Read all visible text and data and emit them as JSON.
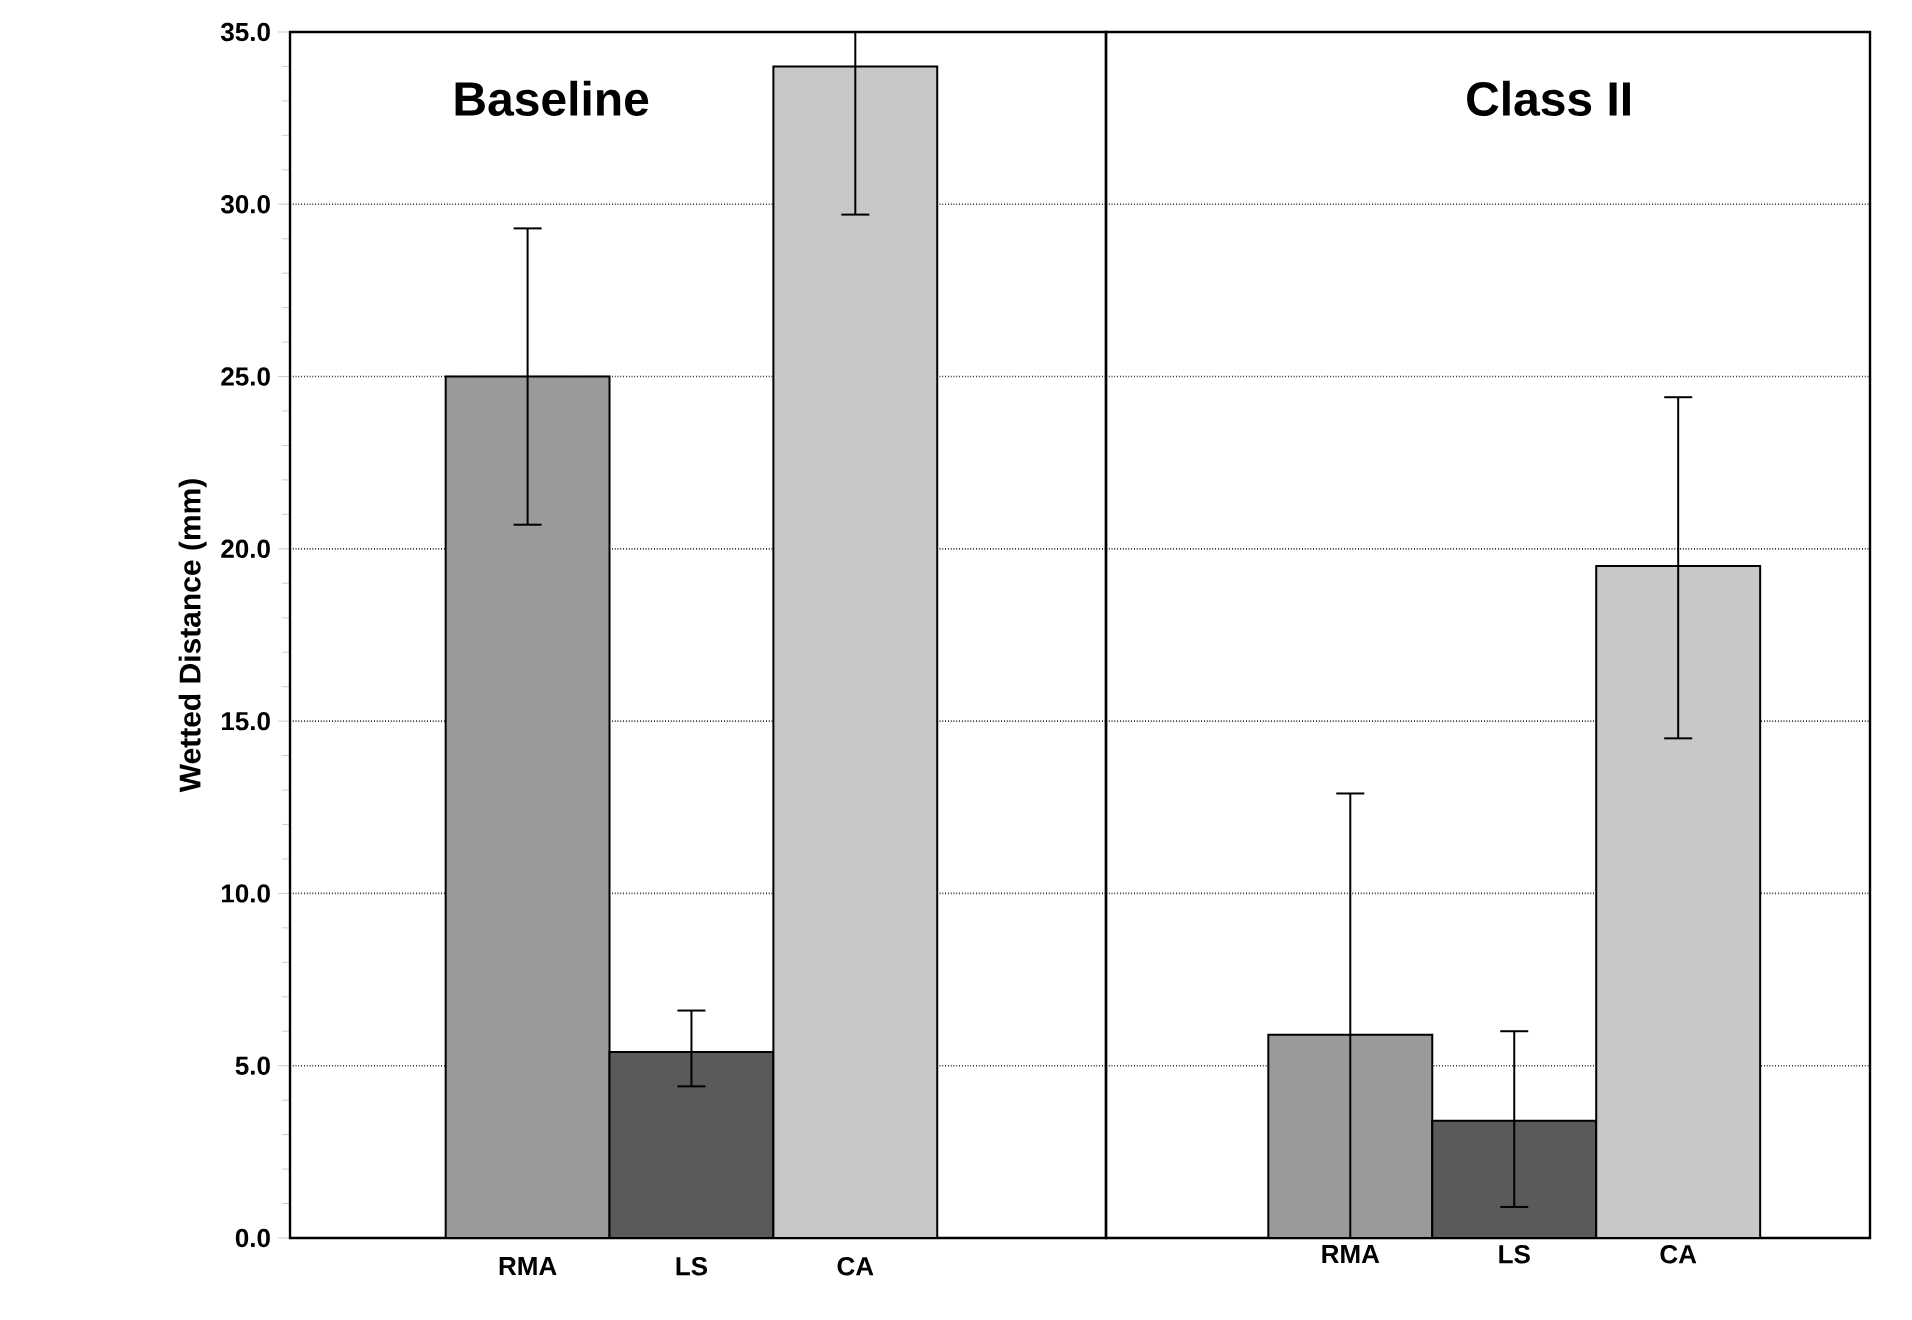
{
  "chart_data": [
    {
      "type": "bar",
      "title": "Baseline",
      "ylabel": "Wetted  Distance  (mm)",
      "categories": [
        "RMA",
        "LS",
        "CA"
      ],
      "values": [
        25.0,
        5.4,
        34.0
      ],
      "colors": [
        "#9a9a9a",
        "#5a5a5a",
        "#c8c8c8"
      ],
      "errors": [
        [
          20.7,
          29.3
        ],
        [
          4.4,
          6.6
        ],
        [
          29.7,
          35.0
        ]
      ],
      "ylim": [
        0,
        35
      ],
      "yticks": [
        {
          "value": 0,
          "label": "0.0"
        },
        {
          "value": 5,
          "label": "5.0"
        },
        {
          "value": 10,
          "label": "10.0"
        },
        {
          "value": 15,
          "label": "15.0"
        },
        {
          "value": 20,
          "label": "20.0"
        },
        {
          "value": 25,
          "label": "25.0"
        },
        {
          "value": 30,
          "label": "30.0"
        },
        {
          "value": 35,
          "label": "35.0"
        }
      ],
      "grid": "y"
    },
    {
      "type": "bar",
      "title": "Class   II",
      "categories": [
        "RMA",
        "LS",
        "CA"
      ],
      "values": [
        5.9,
        3.4,
        19.5
      ],
      "colors": [
        "#9a9a9a",
        "#5a5a5a",
        "#c8c8c8"
      ],
      "errors": [
        [
          0.0,
          12.9
        ],
        [
          0.9,
          6.0
        ],
        [
          14.5,
          24.4
        ]
      ],
      "ylim": [
        0,
        35
      ],
      "yticks": [
        0,
        5,
        10,
        15,
        20,
        25,
        30,
        35
      ],
      "grid": "y",
      "tick_labels": "x"
    }
  ]
}
